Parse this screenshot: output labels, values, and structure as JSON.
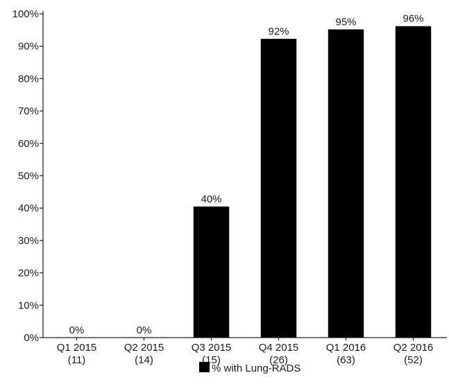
{
  "chart_data": {
    "type": "bar",
    "categories": [
      "Q1 2015",
      "Q2 2015",
      "Q3 2015",
      "Q4 2015",
      "Q1 2016",
      "Q2 2016"
    ],
    "category_counts": [
      "(11)",
      "(14)",
      "(15)",
      "(26)",
      "(63)",
      "(52)"
    ],
    "series": [
      {
        "name": "% with Lung-RADS",
        "values": [
          0,
          0,
          40.5,
          92.3,
          95.2,
          96.2
        ],
        "labels": [
          "0%",
          "0%",
          "40%",
          "92%",
          "95%",
          "96%"
        ],
        "color": "#000000"
      }
    ],
    "y_ticks": [
      "0%",
      "10%",
      "20%",
      "30%",
      "40%",
      "50%",
      "60%",
      "70%",
      "80%",
      "90%",
      "100%"
    ],
    "ylim": [
      0,
      100
    ],
    "grid": false,
    "legend_position": "bottom-center",
    "title": "",
    "xlabel": "",
    "ylabel": ""
  }
}
